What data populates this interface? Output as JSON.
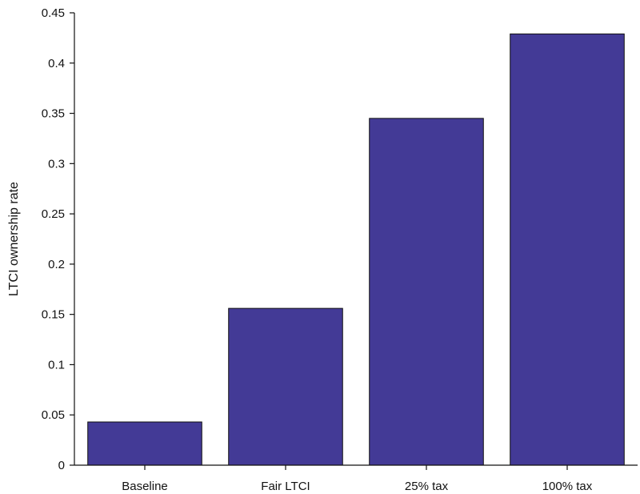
{
  "chart_data": {
    "type": "bar",
    "title": "",
    "xlabel": "",
    "ylabel": "LTCI ownership rate",
    "categories": [
      "Baseline",
      "Fair LTCI",
      "25% tax",
      "100% tax"
    ],
    "values": [
      0.043,
      0.156,
      0.345,
      0.429
    ],
    "ylim": [
      0,
      0.45
    ],
    "yticks": [
      0,
      0.05,
      0.1,
      0.15,
      0.2,
      0.25,
      0.3,
      0.35,
      0.4,
      0.45
    ],
    "ytick_labels": [
      "0",
      "0.05",
      "0.1",
      "0.15",
      "0.2",
      "0.25",
      "0.3",
      "0.35",
      "0.4",
      "0.45"
    ],
    "grid": false,
    "legend": "none",
    "bar_color": "#433a96"
  }
}
